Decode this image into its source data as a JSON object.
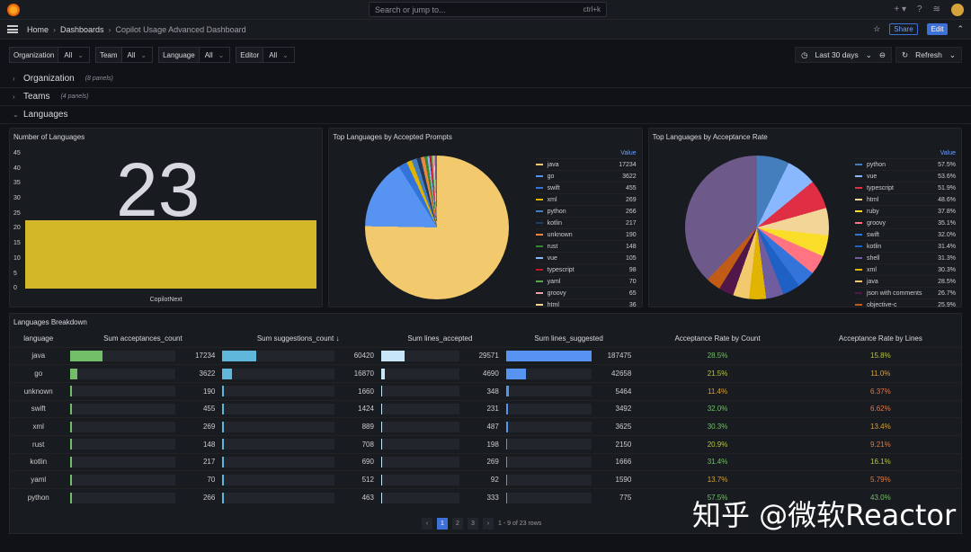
{
  "topbar": {
    "search_placeholder": "Search or jump to...",
    "shortcut": "ctrl+k",
    "plus": "+ ▾"
  },
  "breadcrumb": {
    "home": "Home",
    "dashboards": "Dashboards",
    "current": "Copilot Usage Advanced Dashboard"
  },
  "nav": {
    "share": "Share",
    "edit": "Edit"
  },
  "variables": [
    {
      "label": "Organization",
      "value": "All"
    },
    {
      "label": "Team",
      "value": "All"
    },
    {
      "label": "Language",
      "value": "All"
    },
    {
      "label": "Editor",
      "value": "All"
    }
  ],
  "time": {
    "range": "Last 30 days",
    "refresh": "Refresh"
  },
  "rows": [
    {
      "title": "Organization",
      "count": "(8 panels)"
    },
    {
      "title": "Teams",
      "count": "(4 panels)"
    },
    {
      "title": "Languages",
      "count": ""
    }
  ],
  "panel1": {
    "title": "Number of Languages",
    "value": "23",
    "x": "CopilotNext",
    "yticks": [
      "45",
      "40",
      "35",
      "30",
      "25",
      "20",
      "15",
      "10",
      "5",
      "0"
    ]
  },
  "panel2": {
    "title": "Top Languages by Accepted Prompts",
    "header": "Value",
    "items": [
      [
        "java",
        "17234",
        "#f2c96d"
      ],
      [
        "go",
        "3622",
        "#5794f2"
      ],
      [
        "swift",
        "455",
        "#3274d9"
      ],
      [
        "xml",
        "269",
        "#e0b400"
      ],
      [
        "python",
        "266",
        "#447ebc"
      ],
      [
        "kotlin",
        "217",
        "#1f3b5f"
      ],
      [
        "unknown",
        "190",
        "#ef843c"
      ],
      [
        "rust",
        "148",
        "#37872d"
      ],
      [
        "vue",
        "105",
        "#8ab8ff"
      ],
      [
        "typescript",
        "98",
        "#c4162a"
      ],
      [
        "yaml",
        "70",
        "#56a64b"
      ],
      [
        "groovy",
        "65",
        "#e8a0a8"
      ],
      [
        "html",
        "36",
        "#f4d598"
      ]
    ]
  },
  "panel3": {
    "title": "Top Languages by Acceptance Rate",
    "header": "Value",
    "items": [
      [
        "python",
        "57.5%",
        "#447ebc"
      ],
      [
        "vue",
        "53.6%",
        "#8ab8ff"
      ],
      [
        "typescript",
        "51.9%",
        "#e02f44"
      ],
      [
        "html",
        "48.6%",
        "#f4d598"
      ],
      [
        "ruby",
        "37.8%",
        "#fade2a"
      ],
      [
        "groovy",
        "35.1%",
        "#ff7383"
      ],
      [
        "swift",
        "32.0%",
        "#3274d9"
      ],
      [
        "kotlin",
        "31.4%",
        "#1f60c4"
      ],
      [
        "shell",
        "31.3%",
        "#705da0"
      ],
      [
        "xml",
        "30.3%",
        "#e0b400"
      ],
      [
        "java",
        "28.5%",
        "#f2c96d"
      ],
      [
        "json with comments",
        "26.7%",
        "#511749"
      ],
      [
        "objective-c",
        "25.9%",
        "#c15c17"
      ]
    ]
  },
  "table": {
    "title": "Languages Breakdown",
    "headers": [
      "language",
      "Sum acceptances_count",
      "Sum suggestions_count ↓",
      "Sum lines_accepted",
      "Sum lines_suggested",
      "Acceptance Rate by Count",
      "Acceptance Rate by Lines"
    ],
    "rows": [
      [
        "java",
        "17234",
        "60420",
        "29571",
        "187475",
        "28.5%",
        "15.8%"
      ],
      [
        "go",
        "3622",
        "16870",
        "4690",
        "42658",
        "21.5%",
        "11.0%"
      ],
      [
        "unknown",
        "190",
        "1660",
        "348",
        "5464",
        "11.4%",
        "6.37%"
      ],
      [
        "swift",
        "455",
        "1424",
        "231",
        "3492",
        "32.0%",
        "6.62%"
      ],
      [
        "xml",
        "269",
        "889",
        "487",
        "3625",
        "30.3%",
        "13.4%"
      ],
      [
        "rust",
        "148",
        "708",
        "198",
        "2150",
        "20.9%",
        "9.21%"
      ],
      [
        "kotlin",
        "217",
        "690",
        "269",
        "1666",
        "31.4%",
        "16.1%"
      ],
      [
        "yaml",
        "70",
        "512",
        "92",
        "1590",
        "13.7%",
        "5.79%"
      ],
      [
        "python",
        "266",
        "463",
        "333",
        "775",
        "57.5%",
        "43.0%"
      ]
    ],
    "pages": [
      "1",
      "2",
      "3"
    ],
    "summary": "1 - 9 of 23 rows"
  },
  "watermark": "知乎 @微软Reactor"
}
